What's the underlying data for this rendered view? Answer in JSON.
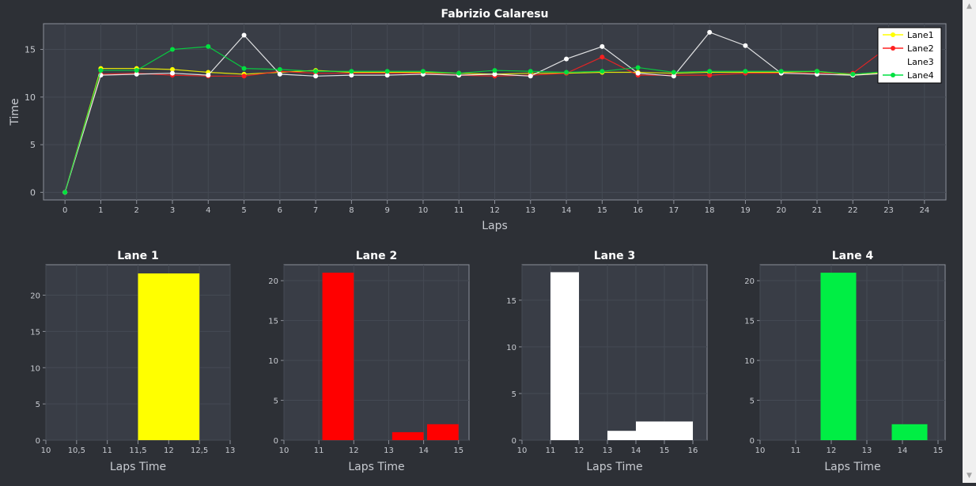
{
  "scrollbar": {
    "up_icon": "chevron-up-icon",
    "down_icon": "chevron-down-icon"
  },
  "chart_data": [
    {
      "type": "line",
      "title": "Fabrizio Calaresu",
      "xlabel": "Laps",
      "ylabel": "Time",
      "x": [
        0,
        1,
        2,
        3,
        4,
        5,
        6,
        7,
        8,
        9,
        10,
        11,
        12,
        13,
        14,
        15,
        16,
        17,
        18,
        19,
        20,
        21,
        22,
        23,
        24
      ],
      "xlim": [
        -0.6,
        24.6
      ],
      "ylim": [
        -0.8,
        17.7
      ],
      "yticks": [
        0,
        5,
        10,
        15
      ],
      "xticks": [
        0,
        1,
        2,
        3,
        4,
        5,
        6,
        7,
        8,
        9,
        10,
        11,
        12,
        13,
        14,
        15,
        16,
        17,
        18,
        19,
        20,
        21,
        22,
        23,
        24
      ],
      "grid": true,
      "legend": "top-right",
      "series": [
        {
          "name": "Lane1",
          "color": "#ffff00",
          "values": [
            0,
            13.0,
            13.0,
            12.9,
            12.6,
            12.4,
            12.6,
            12.8,
            12.6,
            12.6,
            12.6,
            12.5,
            12.4,
            12.5,
            12.5,
            12.6,
            12.6,
            12.5,
            12.6,
            12.6,
            12.6,
            12.7,
            12.3,
            12.6,
            null
          ]
        },
        {
          "name": "Lane2",
          "color": "#ff2020",
          "values": [
            0,
            12.4,
            12.5,
            12.3,
            12.2,
            12.2,
            12.7,
            12.5,
            12.5,
            12.5,
            12.5,
            12.3,
            12.2,
            12.3,
            12.5,
            14.2,
            12.3,
            12.3,
            12.3,
            12.5,
            12.5,
            12.5,
            12.5,
            15.3,
            null
          ]
        },
        {
          "name": "Lane3",
          "color": "#ffffff",
          "values": [
            0,
            12.3,
            12.4,
            12.5,
            12.3,
            16.5,
            12.4,
            12.2,
            12.3,
            12.3,
            12.4,
            12.3,
            12.4,
            12.2,
            14.0,
            15.3,
            12.5,
            12.2,
            16.8,
            15.4,
            12.5,
            12.4,
            12.3,
            12.5,
            null
          ]
        },
        {
          "name": "Lane4",
          "color": "#00e040",
          "values": [
            0,
            12.8,
            12.8,
            15.0,
            15.3,
            13.0,
            12.9,
            12.7,
            12.7,
            12.7,
            12.7,
            12.5,
            12.8,
            12.7,
            12.6,
            12.7,
            13.1,
            12.6,
            12.7,
            12.7,
            12.7,
            12.7,
            12.4,
            12.7,
            null
          ]
        }
      ]
    },
    {
      "type": "bar",
      "title": "Lane 1",
      "xlabel": "Laps Time",
      "ylabel": "",
      "color": "#ffff00",
      "xlim": [
        10,
        13
      ],
      "ylim": [
        0,
        24.2
      ],
      "xticks": [
        10,
        10.5,
        11,
        11.5,
        12,
        12.5,
        13
      ],
      "xtick_labels": [
        "10",
        "10,5",
        "11",
        "11,5",
        "12",
        "12,5",
        "13"
      ],
      "yticks": [
        0,
        5,
        10,
        15,
        20
      ],
      "bars": [
        {
          "x0": 11.5,
          "x1": 12.5,
          "value": 23
        }
      ]
    },
    {
      "type": "bar",
      "title": "Lane 2",
      "xlabel": "Laps Time",
      "ylabel": "",
      "color": "#ff0000",
      "xlim": [
        10,
        15.3
      ],
      "ylim": [
        0,
        22
      ],
      "xticks": [
        10,
        11,
        12,
        13,
        14,
        15
      ],
      "xtick_labels": [
        "10",
        "11",
        "12",
        "13",
        "14",
        "15"
      ],
      "yticks": [
        0,
        5,
        10,
        15,
        20
      ],
      "bars": [
        {
          "x0": 11.1,
          "x1": 12.0,
          "value": 21
        },
        {
          "x0": 13.1,
          "x1": 14.0,
          "value": 1
        },
        {
          "x0": 14.1,
          "x1": 15.0,
          "value": 2
        }
      ]
    },
    {
      "type": "bar",
      "title": "Lane 3",
      "xlabel": "Laps Time",
      "ylabel": "",
      "color": "#ffffff",
      "xlim": [
        10,
        16.5
      ],
      "ylim": [
        0,
        18.8
      ],
      "xticks": [
        10,
        11,
        12,
        13,
        14,
        15,
        16
      ],
      "xtick_labels": [
        "10",
        "11",
        "12",
        "13",
        "14",
        "15",
        "16"
      ],
      "yticks": [
        0,
        5,
        10,
        15
      ],
      "bars": [
        {
          "x0": 11.0,
          "x1": 12.0,
          "value": 18
        },
        {
          "x0": 13.0,
          "x1": 14.0,
          "value": 1
        },
        {
          "x0": 14.0,
          "x1": 15.0,
          "value": 2
        },
        {
          "x0": 15.0,
          "x1": 16.0,
          "value": 2
        }
      ]
    },
    {
      "type": "bar",
      "title": "Lane 4",
      "xlabel": "Laps Time",
      "ylabel": "",
      "color": "#00ee44",
      "xlim": [
        10,
        15.2
      ],
      "ylim": [
        0,
        22
      ],
      "xticks": [
        10,
        11,
        12,
        13,
        14,
        15
      ],
      "xtick_labels": [
        "10",
        "11",
        "12",
        "13",
        "14",
        "15"
      ],
      "yticks": [
        0,
        5,
        10,
        15,
        20
      ],
      "bars": [
        {
          "x0": 11.7,
          "x1": 12.7,
          "value": 21
        },
        {
          "x0": 13.7,
          "x1": 14.7,
          "value": 2
        }
      ]
    }
  ]
}
